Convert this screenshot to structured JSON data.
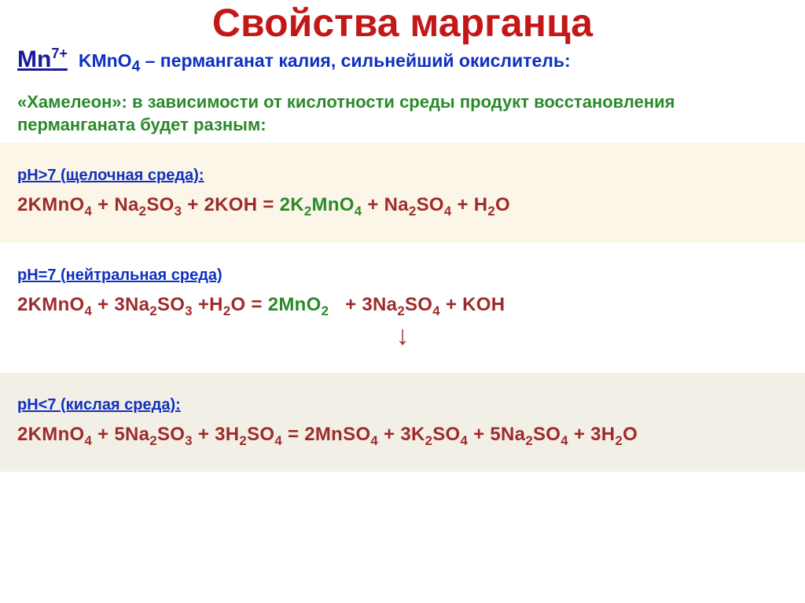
{
  "colors": {
    "title": "#c31818",
    "mn_label": "#1a1a99",
    "subtitle": "#1030c0",
    "description": "#2a8a2a",
    "section_label": "#1030c0",
    "equation": "#9e2b2b",
    "product_highlight": "#2a8a2a",
    "background": "#ffffff",
    "band_section": "#fbf6e8",
    "band_bottom": "#f2efe6",
    "arrow": "#9e2b2b"
  },
  "fontsizes": {
    "title": 50,
    "mn_label": 30,
    "subtitle": 23,
    "description": 22,
    "section_label": 20,
    "equation": 24
  },
  "title": "Свойства марганца",
  "mn_label_html": "Mn<sup>7+</sup>",
  "subtitle_html": "KMnO<sub>4</sub> – перманганат калия, сильнейший окислитель:",
  "description": "«Хамелеон»: в зависимости от кислотности среды продукт восстановления перманганата будет разным:",
  "sections": [
    {
      "band_color": "#fbf6e8",
      "label": "pH>7 (щелочная среда):",
      "eq_left_html": "2KMnO<sub>4</sub> + Na<sub>2</sub>SO<sub>3</sub> + 2KOH = ",
      "eq_product_html": "2K<sub>2</sub>MnO<sub>4</sub>",
      "eq_right_html": " + Na<sub>2</sub>SO<sub>4</sub> + H<sub>2</sub>O"
    },
    {
      "band_color": "#ffffff",
      "label": "pH=7 (нейтральная среда)",
      "eq_left_html": "2KMnO<sub>4</sub> + 3Na<sub>2</sub>SO<sub>3</sub> +H<sub>2</sub>O = ",
      "eq_product_html": "2MnO<sub>2</sub>",
      "eq_right_html": "&nbsp;&nbsp;&nbsp;+ 3Na<sub>2</sub>SO<sub>4</sub> + KOH"
    },
    {
      "band_color": "#f2efe6",
      "label": "pH<7 (кислая среда):",
      "eq_left_html": "2KMnO<sub>4</sub> + 5Na<sub>2</sub>SO<sub>3</sub> + 3H<sub>2</sub>SO<sub>4</sub> = 2MnSO<sub>4</sub> + 3K<sub>2</sub>SO<sub>4</sub> + 5Na<sub>2</sub>SO<sub>4</sub> + 3H<sub>2</sub>O",
      "eq_product_html": "",
      "eq_right_html": ""
    }
  ],
  "arrow_after_section_index": 1,
  "arrow_glyph": "↓"
}
